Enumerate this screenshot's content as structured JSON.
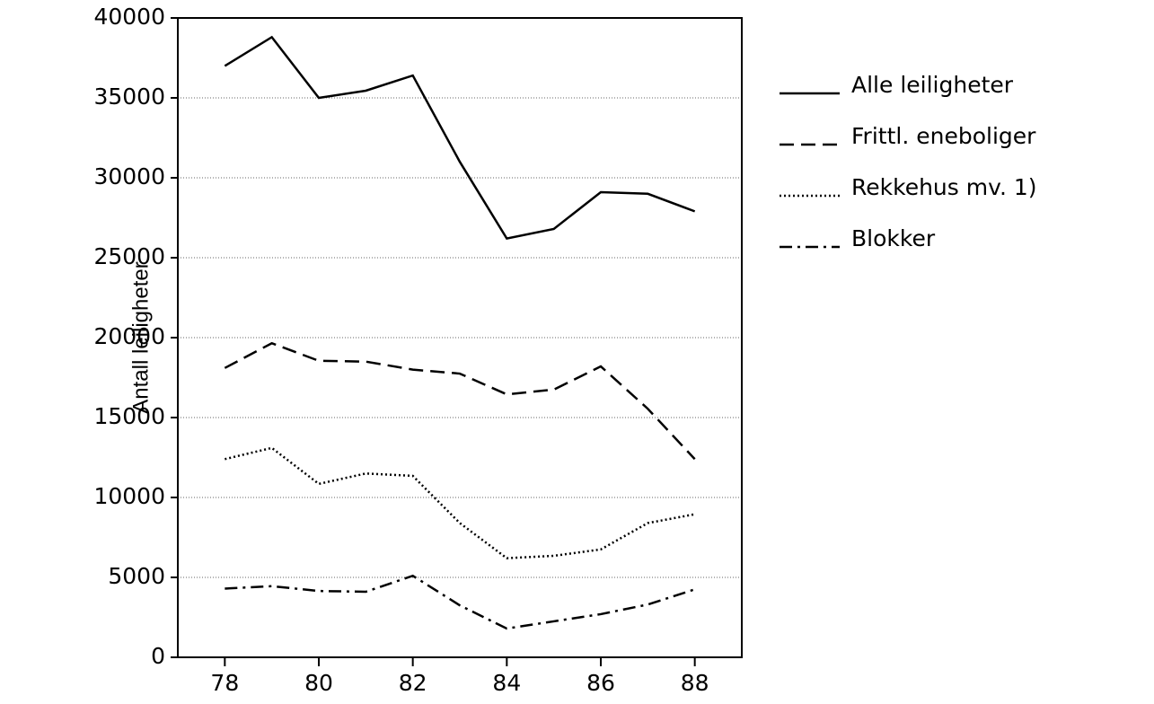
{
  "chart_data": {
    "type": "line",
    "y_label": "Antall leiligheter",
    "x": [
      78,
      79,
      80,
      81,
      82,
      83,
      84,
      85,
      86,
      87,
      88
    ],
    "xlim": [
      77,
      89
    ],
    "xticks": [
      78,
      80,
      82,
      84,
      86,
      88
    ],
    "ylim": [
      0,
      40000
    ],
    "yticks": [
      0,
      5000,
      10000,
      15000,
      20000,
      25000,
      30000,
      35000,
      40000
    ],
    "grid": true,
    "legend": "right",
    "series": [
      {
        "name": "Alle leiligheter",
        "color": "#000000",
        "dash": "solid",
        "values": [
          37000,
          38800,
          35000,
          35450,
          36400,
          31000,
          26200,
          26800,
          29100,
          29000,
          27900
        ]
      },
      {
        "name": "Frittl. eneboliger",
        "color": "#000000",
        "dash": "dashed",
        "values": [
          18100,
          19650,
          18550,
          18500,
          18000,
          17750,
          16450,
          16750,
          18200,
          15550,
          12400
        ]
      },
      {
        "name": "Rekkehus mv. 1)",
        "color": "#000000",
        "dash": "dotted",
        "values": [
          12400,
          13100,
          10850,
          11500,
          11350,
          8400,
          6200,
          6350,
          6750,
          8400,
          8950
        ]
      },
      {
        "name": "Blokker",
        "color": "#000000",
        "dash": "dashdot",
        "values": [
          4300,
          4450,
          4150,
          4100,
          5100,
          3250,
          1800,
          2250,
          2700,
          3300,
          4250
        ]
      }
    ]
  }
}
